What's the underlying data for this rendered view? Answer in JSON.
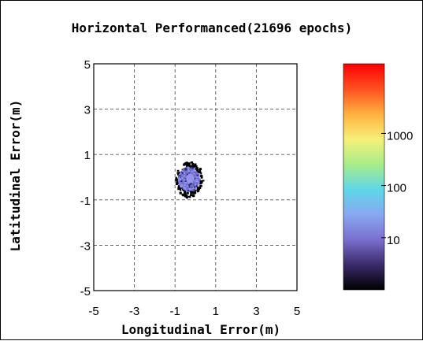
{
  "chart_data": {
    "type": "heatmap",
    "title": "Horizontal Performanced(21696 epochs)",
    "xlabel": "Longitudinal Error(m)",
    "ylabel": "Latitudinal Error(m)",
    "xlim": [
      -5,
      5
    ],
    "ylim": [
      -5,
      5
    ],
    "x_ticks": [
      "-5",
      "-3",
      "-1",
      "1",
      "3",
      "5"
    ],
    "y_ticks": [
      "5",
      "3",
      "1",
      "-1",
      "-3",
      "-5"
    ],
    "x_tick_values": [
      -5,
      -3,
      -1,
      1,
      3,
      5
    ],
    "y_tick_values": [
      5,
      3,
      1,
      -1,
      -3,
      -5
    ],
    "grid": true,
    "grid_style": "dashed",
    "point_cloud": {
      "center": [
        -0.3,
        -0.1
      ],
      "x_range": [
        -1.0,
        0.3
      ],
      "y_range": [
        -0.9,
        0.9
      ],
      "dominant_color": "#7070d0",
      "core_color": "#9898ee",
      "edge_color": "#000000"
    },
    "colorbar": {
      "scale": "log",
      "tick_labels": [
        "1000",
        "100",
        "10"
      ],
      "tick_values": [
        1000,
        100,
        10
      ],
      "range": [
        1,
        21696
      ],
      "colors": [
        "#000000",
        "#3a2a6a",
        "#7b6fcf",
        "#88a8f0",
        "#5fd7e8",
        "#a8ec88",
        "#f6f078",
        "#ffb040",
        "#ff5020",
        "#ff0000"
      ]
    }
  }
}
